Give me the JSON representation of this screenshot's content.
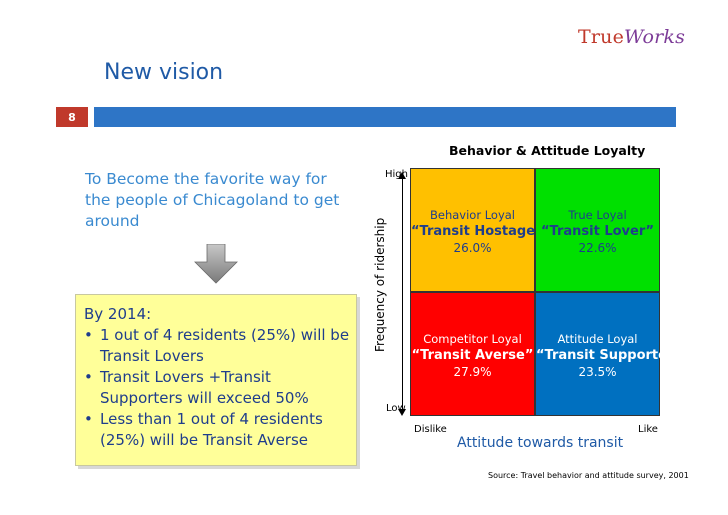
{
  "header": {
    "logo_part1": "True",
    "logo_part2": "Works",
    "title": "New vision",
    "slide_number": "8"
  },
  "colors": {
    "title_blue": "#1f5aa6",
    "bar_blue": "#2e75c6",
    "number_red": "#c0392b",
    "note_yellow": "#ffff99"
  },
  "left": {
    "vision_statement": "To Become the favorite way for the people of Chicagoland to get around",
    "arrow_icon": "down-arrow-icon",
    "goals": {
      "heading": "By 2014:",
      "items": [
        "1 out of 4 residents (25%) will be Transit Lovers",
        "Transit Lovers +Transit Supporters will exceed 50%",
        "Less than 1 out of 4 residents (25%) will be Transit Averse"
      ]
    }
  },
  "chart_data": {
    "type": "table",
    "title": "Behavior & Attitude Loyalty",
    "ylabel": "Frequency of ridership",
    "xlabel": "Attitude towards transit",
    "y_ends": {
      "high": "High",
      "low": "Low"
    },
    "x_ends": {
      "low": "Dislike",
      "high": "Like"
    },
    "quadrants": [
      {
        "position": "top-left",
        "label": "Behavior Loyal",
        "name": "“Transit Hostage”",
        "value": "26.0%",
        "percent": 26.0,
        "color": "#ffc000"
      },
      {
        "position": "top-right",
        "label": "True Loyal",
        "name": "“Transit Lover”",
        "value": "22.6%",
        "percent": 22.6,
        "color": "#00e000"
      },
      {
        "position": "bottom-left",
        "label": "Competitor Loyal",
        "name": "“Transit Averse”",
        "value": "27.9%",
        "percent": 27.9,
        "color": "#ff0000"
      },
      {
        "position": "bottom-right",
        "label": "Attitude Loyal",
        "name": "“Transit Supporter”",
        "value": "23.5%",
        "percent": 23.5,
        "color": "#0070c0"
      }
    ],
    "source": "Source: Travel behavior and attitude survey, 2001"
  }
}
